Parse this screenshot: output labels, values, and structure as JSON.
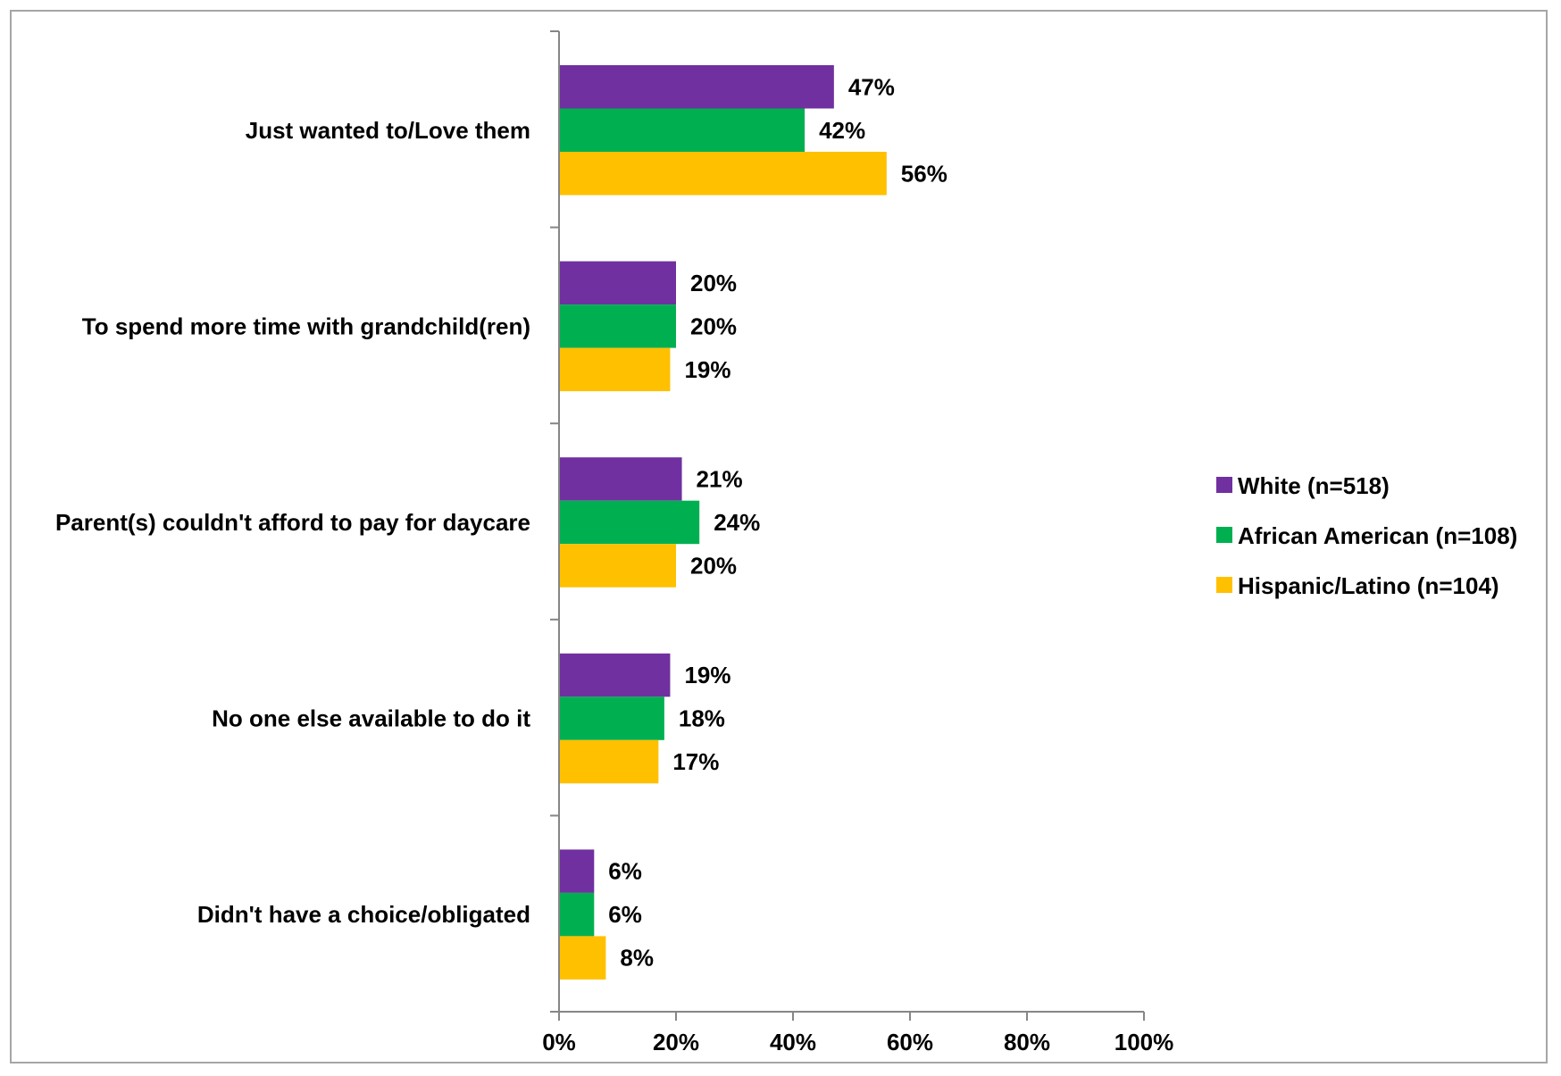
{
  "chart_data": {
    "type": "bar",
    "orientation": "horizontal",
    "title": "",
    "xlabel": "",
    "ylabel": "",
    "categories": [
      "Just wanted to/Love them",
      "To spend more time with grandchild(ren)",
      "Parent(s) couldn't afford to pay for daycare",
      "No one else available to do it",
      "Didn't have a choice/obligated"
    ],
    "series": [
      {
        "name": "White (n=518)",
        "color": "#7030a0",
        "values": [
          47,
          20,
          21,
          19,
          6
        ],
        "labels": [
          "47%",
          "20%",
          "21%",
          "19%",
          "6%"
        ]
      },
      {
        "name": "African American (n=108)",
        "color": "#00b050",
        "values": [
          42,
          20,
          24,
          18,
          6
        ],
        "labels": [
          "42%",
          "20%",
          "24%",
          "18%",
          "6%"
        ]
      },
      {
        "name": "Hispanic/Latino (n=104)",
        "color": "#ffc000",
        "values": [
          56,
          19,
          20,
          17,
          8
        ],
        "labels": [
          "56%",
          "19%",
          "20%",
          "17%",
          "8%"
        ]
      }
    ],
    "xlim": [
      0,
      100
    ],
    "ticks": [
      0,
      20,
      40,
      60,
      80,
      100
    ],
    "tick_labels": [
      "0%",
      "20%",
      "40%",
      "60%",
      "80%",
      "100%"
    ],
    "grid": false,
    "legend_position": "right"
  }
}
